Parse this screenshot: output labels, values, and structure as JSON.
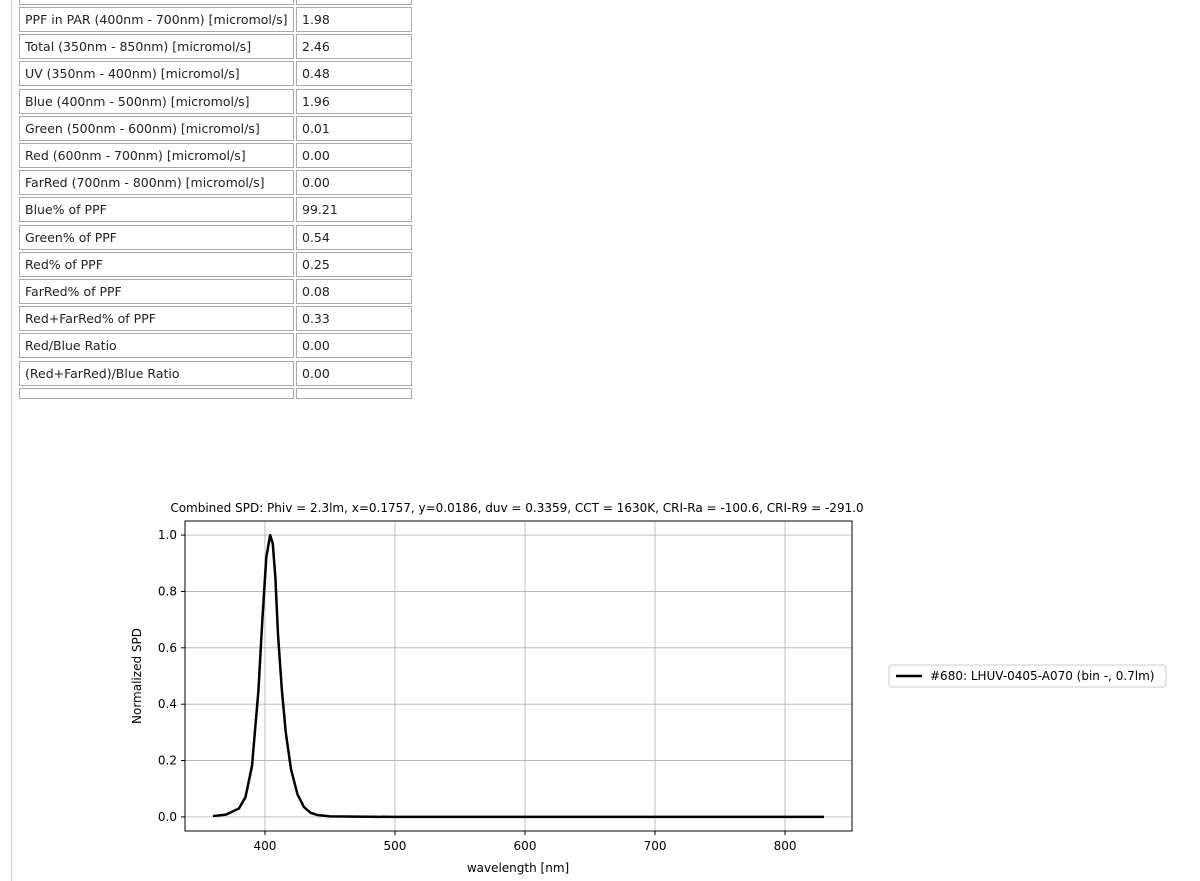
{
  "table": {
    "rows": [
      [
        "PPF in PAR (400nm - 700nm) [micromol/s]",
        "1.98"
      ],
      [
        "Total (350nm - 850nm) [micromol/s]",
        "2.46"
      ],
      [
        "UV (350nm - 400nm) [micromol/s]",
        "0.48"
      ],
      [
        "Blue (400nm - 500nm) [micromol/s]",
        "1.96"
      ],
      [
        "Green (500nm - 600nm) [micromol/s]",
        "0.01"
      ],
      [
        "Red (600nm - 700nm) [micromol/s]",
        "0.00"
      ],
      [
        "FarRed (700nm - 800nm) [micromol/s]",
        "0.00"
      ],
      [
        "Blue% of PPF",
        "99.21"
      ],
      [
        "Green% of PPF",
        "0.54"
      ],
      [
        "Red% of PPF",
        "0.25"
      ],
      [
        "FarRed% of PPF",
        "0.08"
      ],
      [
        "Red+FarRed% of PPF",
        "0.33"
      ],
      [
        "Red/Blue Ratio",
        "0.00"
      ],
      [
        "(Red+FarRed)/Blue Ratio",
        "0.00"
      ]
    ]
  },
  "chart_data": {
    "type": "line",
    "title": "Combined SPD: Phiv = 2.3lm, x=0.1757, y=0.0186, duv = 0.3359, CCT = 1630K, CRI-Ra = -100.6, CRI-R9 = -291.0",
    "xlabel": "wavelength [nm]",
    "ylabel": "Normalized SPD",
    "x": [
      360,
      370,
      380,
      385,
      390,
      395,
      398,
      401,
      404,
      406,
      408,
      410,
      413,
      416,
      420,
      425,
      430,
      435,
      440,
      450,
      470,
      500,
      600,
      700,
      830
    ],
    "series": [
      {
        "name": "#680: LHUV-0405-A070 (bin -, 0.7lm)",
        "color": "#000000",
        "values": [
          0.003,
          0.008,
          0.03,
          0.07,
          0.18,
          0.45,
          0.7,
          0.92,
          1.0,
          0.97,
          0.85,
          0.65,
          0.45,
          0.3,
          0.17,
          0.08,
          0.035,
          0.015,
          0.007,
          0.002,
          0.001,
          0,
          0,
          0,
          0
        ]
      }
    ],
    "xlim": [
      338.5,
      851.5
    ],
    "ylim": [
      -0.05,
      1.05
    ],
    "xticks": [
      400,
      500,
      600,
      700,
      800
    ],
    "yticks": [
      {
        "value": 0,
        "label": "0.0"
      },
      0.2,
      0.4,
      0.6,
      0.8,
      {
        "value": 1,
        "label": "1.0"
      }
    ],
    "grid": true,
    "legend": "outside-right"
  }
}
